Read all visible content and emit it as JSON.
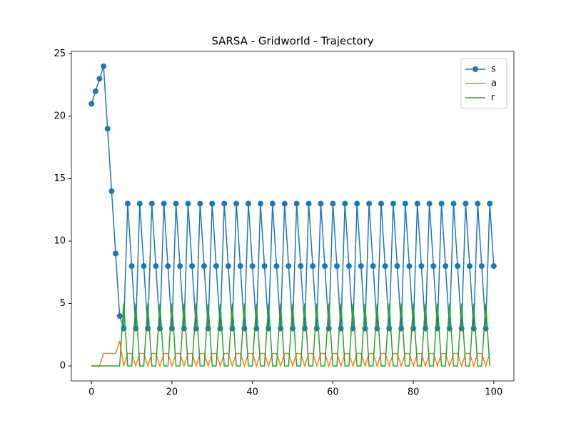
{
  "chart_data": {
    "type": "line",
    "title": "SARSA - Gridworld - Trajectory",
    "x": [
      0,
      1,
      2,
      3,
      4,
      5,
      6,
      7,
      8,
      9,
      10,
      11,
      12,
      13,
      14,
      15,
      16,
      17,
      18,
      19,
      20,
      21,
      22,
      23,
      24,
      25,
      26,
      27,
      28,
      29,
      30,
      31,
      32,
      33,
      34,
      35,
      36,
      37,
      38,
      39,
      40,
      41,
      42,
      43,
      44,
      45,
      46,
      47,
      48,
      49,
      50,
      51,
      52,
      53,
      54,
      55,
      56,
      57,
      58,
      59,
      60,
      61,
      62,
      63,
      64,
      65,
      66,
      67,
      68,
      69,
      70,
      71,
      72,
      73,
      74,
      75,
      76,
      77,
      78,
      79,
      80,
      81,
      82,
      83,
      84,
      85,
      86,
      87,
      88,
      89,
      90,
      91,
      92,
      93,
      94,
      95,
      96,
      97,
      98,
      99,
      100
    ],
    "series": [
      {
        "name": "s",
        "color": "#1f77b4",
        "marker": "o",
        "values": [
          21,
          22,
          23,
          24,
          19,
          14,
          9,
          4,
          3,
          13,
          8,
          3,
          13,
          8,
          3,
          13,
          8,
          3,
          13,
          8,
          3,
          13,
          8,
          3,
          13,
          8,
          3,
          13,
          8,
          3,
          13,
          8,
          3,
          13,
          8,
          3,
          13,
          8,
          3,
          13,
          8,
          3,
          13,
          8,
          3,
          13,
          8,
          3,
          13,
          8,
          3,
          13,
          8,
          3,
          13,
          8,
          3,
          13,
          8,
          3,
          13,
          8,
          3,
          13,
          8,
          3,
          13,
          8,
          3,
          13,
          8,
          3,
          13,
          8,
          3,
          13,
          8,
          3,
          13,
          8,
          3,
          13,
          8,
          3,
          13,
          8,
          3,
          13,
          8,
          3,
          13,
          8,
          3,
          13,
          8,
          3,
          13,
          8,
          3,
          13,
          8
        ]
      },
      {
        "name": "a",
        "color": "#ff7f0e",
        "values": [
          0,
          0,
          0,
          1,
          1,
          1,
          1,
          2,
          0,
          1,
          1,
          0,
          1,
          1,
          0,
          1,
          1,
          0,
          1,
          1,
          0,
          1,
          1,
          0,
          1,
          1,
          0,
          1,
          1,
          0,
          1,
          1,
          0,
          1,
          1,
          0,
          1,
          1,
          0,
          1,
          1,
          0,
          1,
          1,
          0,
          1,
          1,
          0,
          1,
          1,
          0,
          1,
          1,
          0,
          1,
          1,
          0,
          1,
          1,
          0,
          1,
          1,
          0,
          1,
          1,
          0,
          1,
          1,
          0,
          1,
          1,
          0,
          1,
          1,
          0,
          1,
          1,
          0,
          1,
          1,
          0,
          1,
          1,
          0,
          1,
          1,
          0,
          1,
          1,
          0,
          1,
          1,
          0,
          1,
          1,
          0,
          1,
          1,
          0,
          1,
          null
        ]
      },
      {
        "name": "r",
        "color": "#2ca02c",
        "values": [
          0,
          0,
          0,
          0,
          0,
          0,
          0,
          0,
          5,
          0,
          0,
          5,
          0,
          0,
          5,
          0,
          0,
          5,
          0,
          0,
          5,
          0,
          0,
          5,
          0,
          0,
          5,
          0,
          0,
          5,
          0,
          0,
          5,
          0,
          0,
          5,
          0,
          0,
          5,
          0,
          0,
          5,
          0,
          0,
          5,
          0,
          0,
          5,
          0,
          0,
          5,
          0,
          0,
          5,
          0,
          0,
          5,
          0,
          0,
          5,
          0,
          0,
          5,
          0,
          0,
          5,
          0,
          0,
          5,
          0,
          0,
          5,
          0,
          0,
          5,
          0,
          0,
          5,
          0,
          0,
          5,
          0,
          0,
          5,
          0,
          0,
          5,
          0,
          0,
          5,
          0,
          0,
          5,
          0,
          0,
          5,
          0,
          0,
          5,
          0,
          null
        ]
      }
    ],
    "xlim": [
      -5,
      105
    ],
    "xticks": [
      0,
      20,
      40,
      60,
      80,
      100
    ],
    "ylim": [
      -1.2,
      25.2
    ],
    "yticks": [
      0,
      5,
      10,
      15,
      20,
      25
    ],
    "legend": "upper right"
  }
}
